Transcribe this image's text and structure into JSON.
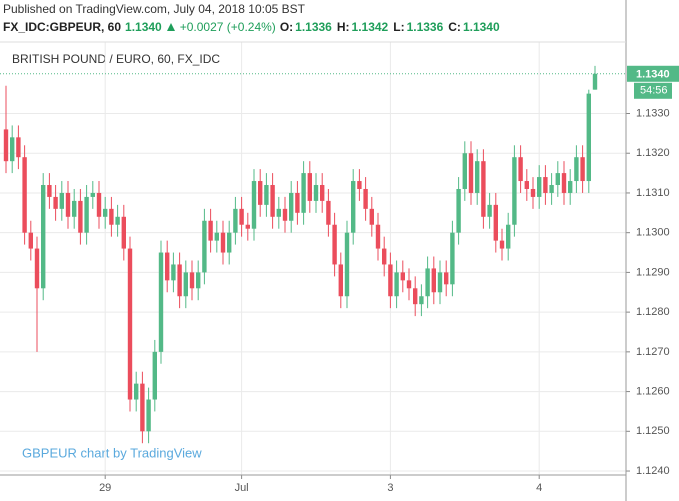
{
  "published": "Published on TradingView.com, July 04, 2018 10:05 BST",
  "legend": {
    "symbol": "FX_IDC:GBPEUR, 60",
    "price": "1.1340",
    "change": "+0.0027 (+0.24%)",
    "ohlc": [
      {
        "label": "O:",
        "value": "1.1336"
      },
      {
        "label": "H:",
        "value": "1.1342"
      },
      {
        "label": "L:",
        "value": "1.1336"
      },
      {
        "label": "C:",
        "value": "1.1340"
      }
    ]
  },
  "chart_data": {
    "type": "candlestick",
    "title": "BRITISH POUND / EURO, 60, FX_IDC",
    "watermark": "GBPEUR chart by TradingView",
    "up_color": "#53b987",
    "down_color": "#eb4d5c",
    "grid": true,
    "x": [
      null,
      null,
      null,
      null,
      null,
      null,
      null,
      null,
      null,
      null,
      null,
      null,
      null,
      null,
      null,
      null,
      "29",
      null,
      null,
      null,
      null,
      null,
      null,
      null,
      null,
      null,
      null,
      null,
      null,
      null,
      null,
      null,
      null,
      null,
      null,
      null,
      null,
      null,
      "Jul",
      null,
      null,
      null,
      null,
      null,
      null,
      null,
      null,
      null,
      null,
      null,
      null,
      null,
      null,
      null,
      null,
      null,
      null,
      null,
      null,
      null,
      null,
      null,
      "3",
      null,
      null,
      null,
      null,
      null,
      null,
      null,
      null,
      null,
      null,
      null,
      null,
      null,
      null,
      null,
      null,
      null,
      null,
      null,
      null,
      null,
      null,
      null,
      "4",
      null,
      null,
      null,
      null,
      null,
      null,
      null,
      null,
      null
    ],
    "open": [
      1.1326,
      1.1318,
      1.1324,
      1.1319,
      1.13,
      1.1296,
      1.1286,
      1.1312,
      1.1309,
      1.1306,
      1.131,
      1.1304,
      1.1308,
      1.13,
      1.1309,
      1.131,
      1.1304,
      1.1306,
      1.1302,
      1.1304,
      1.1296,
      1.1258,
      1.1262,
      1.125,
      1.1258,
      1.127,
      1.1295,
      1.1288,
      1.1292,
      1.1284,
      1.129,
      1.1286,
      1.129,
      1.1303,
      1.1298,
      1.13,
      1.1295,
      1.13,
      1.1306,
      1.1302,
      1.1301,
      1.1313,
      1.1307,
      1.1312,
      1.1304,
      1.1306,
      1.1303,
      1.131,
      1.1305,
      1.1315,
      1.1308,
      1.1312,
      1.1308,
      1.1302,
      1.1292,
      1.1284,
      1.13,
      1.1313,
      1.1311,
      1.1306,
      1.1302,
      1.1296,
      1.1292,
      1.1284,
      1.129,
      1.1288,
      1.1286,
      1.1282,
      1.1284,
      1.1291,
      1.1285,
      1.129,
      1.1287,
      1.13,
      1.1311,
      1.132,
      1.131,
      1.1318,
      1.1304,
      1.1307,
      1.1298,
      1.1296,
      1.1302,
      1.1319,
      1.1313,
      1.1311,
      1.1309,
      1.1314,
      1.131,
      1.1312,
      1.1315,
      1.131,
      1.1313,
      1.1319,
      1.1313,
      1.1336
    ],
    "high": [
      1.1337,
      1.1327,
      1.1327,
      1.1322,
      1.1303,
      1.1299,
      1.1315,
      1.1315,
      1.1312,
      1.1313,
      1.1313,
      1.1311,
      1.1311,
      1.1312,
      1.1313,
      1.1313,
      1.1309,
      1.1309,
      1.1307,
      1.1307,
      1.1299,
      1.1265,
      1.1265,
      1.1261,
      1.1273,
      1.1298,
      1.1298,
      1.1295,
      1.1295,
      1.1293,
      1.1293,
      1.1293,
      1.1306,
      1.1306,
      1.1303,
      1.1303,
      1.1303,
      1.1309,
      1.1309,
      1.1305,
      1.1316,
      1.1316,
      1.1315,
      1.1315,
      1.1309,
      1.1309,
      1.1313,
      1.1313,
      1.1318,
      1.1318,
      1.1315,
      1.1315,
      1.1311,
      1.1305,
      1.1295,
      1.1303,
      1.1316,
      1.1316,
      1.1314,
      1.1309,
      1.1305,
      1.1299,
      1.1295,
      1.1293,
      1.1293,
      1.1291,
      1.1289,
      1.1287,
      1.1294,
      1.1294,
      1.1293,
      1.1293,
      1.1303,
      1.1314,
      1.1323,
      1.1323,
      1.1321,
      1.1321,
      1.131,
      1.131,
      1.1301,
      1.1305,
      1.1322,
      1.1322,
      1.1316,
      1.1314,
      1.1317,
      1.1317,
      1.1315,
      1.1318,
      1.1318,
      1.1316,
      1.1322,
      1.1322,
      1.1336,
      1.1342
    ],
    "low": [
      1.1315,
      1.1315,
      1.1316,
      1.1297,
      1.1293,
      1.127,
      1.1283,
      1.1306,
      1.1303,
      1.1303,
      1.1301,
      1.1301,
      1.1297,
      1.1297,
      1.1306,
      1.1301,
      1.1301,
      1.1299,
      1.1299,
      1.1293,
      1.1255,
      1.1255,
      1.1247,
      1.1247,
      1.1255,
      1.1267,
      1.1285,
      1.1285,
      1.1281,
      1.1281,
      1.1283,
      1.1283,
      1.1287,
      1.1295,
      1.1295,
      1.1292,
      1.1292,
      1.1297,
      1.1299,
      1.1298,
      1.1298,
      1.1304,
      1.1304,
      1.1301,
      1.1301,
      1.13,
      1.13,
      1.1302,
      1.1302,
      1.1305,
      1.1305,
      1.1305,
      1.1299,
      1.1289,
      1.1281,
      1.1281,
      1.1297,
      1.1308,
      1.1303,
      1.1299,
      1.1293,
      1.1289,
      1.1281,
      1.1281,
      1.1285,
      1.1283,
      1.1279,
      1.1279,
      1.1281,
      1.1282,
      1.1282,
      1.1284,
      1.1284,
      1.1297,
      1.1308,
      1.1307,
      1.1307,
      1.1301,
      1.1301,
      1.1295,
      1.1293,
      1.1293,
      1.1299,
      1.131,
      1.1308,
      1.1306,
      1.1306,
      1.1307,
      1.1307,
      1.1309,
      1.1307,
      1.1307,
      1.131,
      1.131,
      1.131,
      1.1336
    ],
    "close": [
      1.1318,
      1.1324,
      1.1319,
      1.13,
      1.1296,
      1.1286,
      1.1312,
      1.1309,
      1.1306,
      1.131,
      1.1304,
      1.1308,
      1.13,
      1.1309,
      1.131,
      1.1304,
      1.1306,
      1.1302,
      1.1304,
      1.1296,
      1.1258,
      1.1262,
      1.125,
      1.1258,
      1.127,
      1.1295,
      1.1288,
      1.1292,
      1.1284,
      1.129,
      1.1286,
      1.129,
      1.1303,
      1.1298,
      1.13,
      1.1295,
      1.13,
      1.1306,
      1.1302,
      1.1301,
      1.1313,
      1.1307,
      1.1312,
      1.1304,
      1.1306,
      1.1303,
      1.131,
      1.1305,
      1.1315,
      1.1308,
      1.1312,
      1.1308,
      1.1302,
      1.1292,
      1.1284,
      1.13,
      1.1313,
      1.1311,
      1.1306,
      1.1302,
      1.1296,
      1.1292,
      1.1284,
      1.129,
      1.1288,
      1.1286,
      1.1282,
      1.1284,
      1.1291,
      1.1285,
      1.129,
      1.1287,
      1.13,
      1.1311,
      1.132,
      1.131,
      1.1318,
      1.1304,
      1.1307,
      1.1298,
      1.1296,
      1.1302,
      1.1319,
      1.1313,
      1.1311,
      1.1309,
      1.1314,
      1.131,
      1.1312,
      1.1315,
      1.131,
      1.1313,
      1.1319,
      1.1313,
      1.1335,
      1.134
    ],
    "ylim": [
      1.1239,
      1.1348
    ],
    "yticks": [
      {
        "value": 1.124,
        "label": "1.1240"
      },
      {
        "value": 1.125,
        "label": "1.1250"
      },
      {
        "value": 1.126,
        "label": "1.1260"
      },
      {
        "value": 1.127,
        "label": "1.1270"
      },
      {
        "value": 1.128,
        "label": "1.1280"
      },
      {
        "value": 1.129,
        "label": "1.1290"
      },
      {
        "value": 1.13,
        "label": "1.1300"
      },
      {
        "value": 1.131,
        "label": "1.1310"
      },
      {
        "value": 1.132,
        "label": "1.1320"
      },
      {
        "value": 1.133,
        "label": "1.1330"
      }
    ],
    "last_price": {
      "value": 1.134,
      "label": "1.1340"
    },
    "countdown": "54:56"
  }
}
